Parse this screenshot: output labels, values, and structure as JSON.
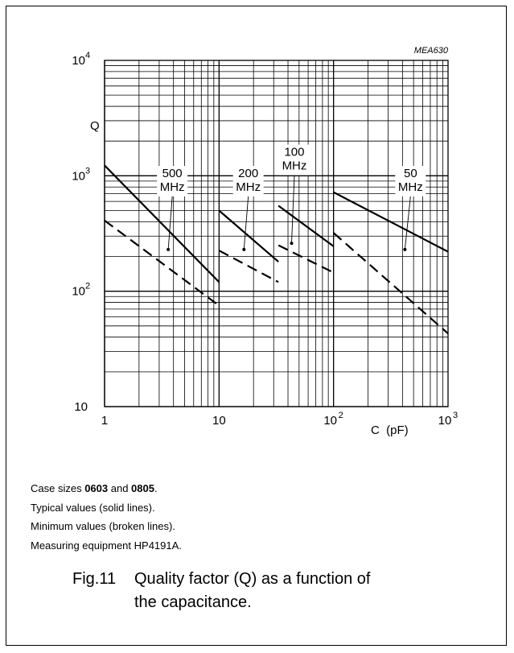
{
  "chart_data": {
    "type": "line",
    "code": "MEA630",
    "ylabel": "Q",
    "xlabel": "C  (pF)",
    "xscale": "log",
    "yscale": "log",
    "xlim": [
      1,
      1000
    ],
    "ylim": [
      10,
      10000
    ],
    "grid": true,
    "x_tick_labels": [
      {
        "value": 1,
        "base": "1",
        "exp": ""
      },
      {
        "value": 10,
        "base": "10",
        "exp": ""
      },
      {
        "value": 100,
        "base": "10",
        "exp": "2"
      },
      {
        "value": 1000,
        "base": "10",
        "exp": "3"
      }
    ],
    "y_tick_labels": [
      {
        "value": 10,
        "base": "10",
        "exp": ""
      },
      {
        "value": 100,
        "base": "10",
        "exp": "2"
      },
      {
        "value": 1000,
        "base": "10",
        "exp": "3"
      },
      {
        "value": 10000,
        "base": "10",
        "exp": " 4"
      }
    ],
    "series": [
      {
        "label": "500 MHz",
        "style": "solid",
        "x": [
          1,
          10
        ],
        "y": [
          1230,
          120
        ]
      },
      {
        "label": "500 MHz",
        "style": "dashed",
        "x": [
          1,
          10
        ],
        "y": [
          410,
          75
        ]
      },
      {
        "label": "200 MHz",
        "style": "solid",
        "x": [
          10,
          33
        ],
        "y": [
          500,
          180
        ]
      },
      {
        "label": "200 MHz",
        "style": "dashed",
        "x": [
          10,
          33
        ],
        "y": [
          225,
          120
        ]
      },
      {
        "label": "100 MHz",
        "style": "solid",
        "x": [
          33,
          100
        ],
        "y": [
          550,
          245
        ]
      },
      {
        "label": "100 MHz",
        "style": "dashed",
        "x": [
          33,
          100
        ],
        "y": [
          250,
          145
        ]
      },
      {
        "label": "50 MHz",
        "style": "solid",
        "x": [
          100,
          1000
        ],
        "y": [
          720,
          220
        ]
      },
      {
        "label": "50 MHz",
        "style": "dashed",
        "x": [
          100,
          1000
        ],
        "y": [
          320,
          43
        ]
      }
    ],
    "annotations": [
      {
        "lines": [
          "500",
          "MHz"
        ],
        "x": 3.9,
        "y": 870,
        "pointer": {
          "x": 3.6,
          "y": 230
        }
      },
      {
        "lines": [
          "200",
          "MHz"
        ],
        "x": 18,
        "y": 870,
        "pointer": {
          "x": 16.5,
          "y": 230
        }
      },
      {
        "lines": [
          "100",
          "MHz"
        ],
        "x": 45.5,
        "y": 1330,
        "pointer": {
          "x": 43,
          "y": 260
        }
      },
      {
        "lines": [
          "50",
          "MHz"
        ],
        "x": 470,
        "y": 870,
        "pointer": {
          "x": 420,
          "y": 230
        }
      }
    ]
  },
  "notes": {
    "line1": {
      "pre": "Case sizes ",
      "b1": "0603",
      "mid": " and ",
      "b2": "0805",
      "post": "."
    },
    "line2": "Typical values (solid lines).",
    "line3": "Minimum values (broken lines).",
    "line4": "Measuring equipment HP4191A."
  },
  "caption": {
    "fig": "Fig.11",
    "line1": "Quality factor (Q) as a function of",
    "line2": "the capacitance."
  }
}
